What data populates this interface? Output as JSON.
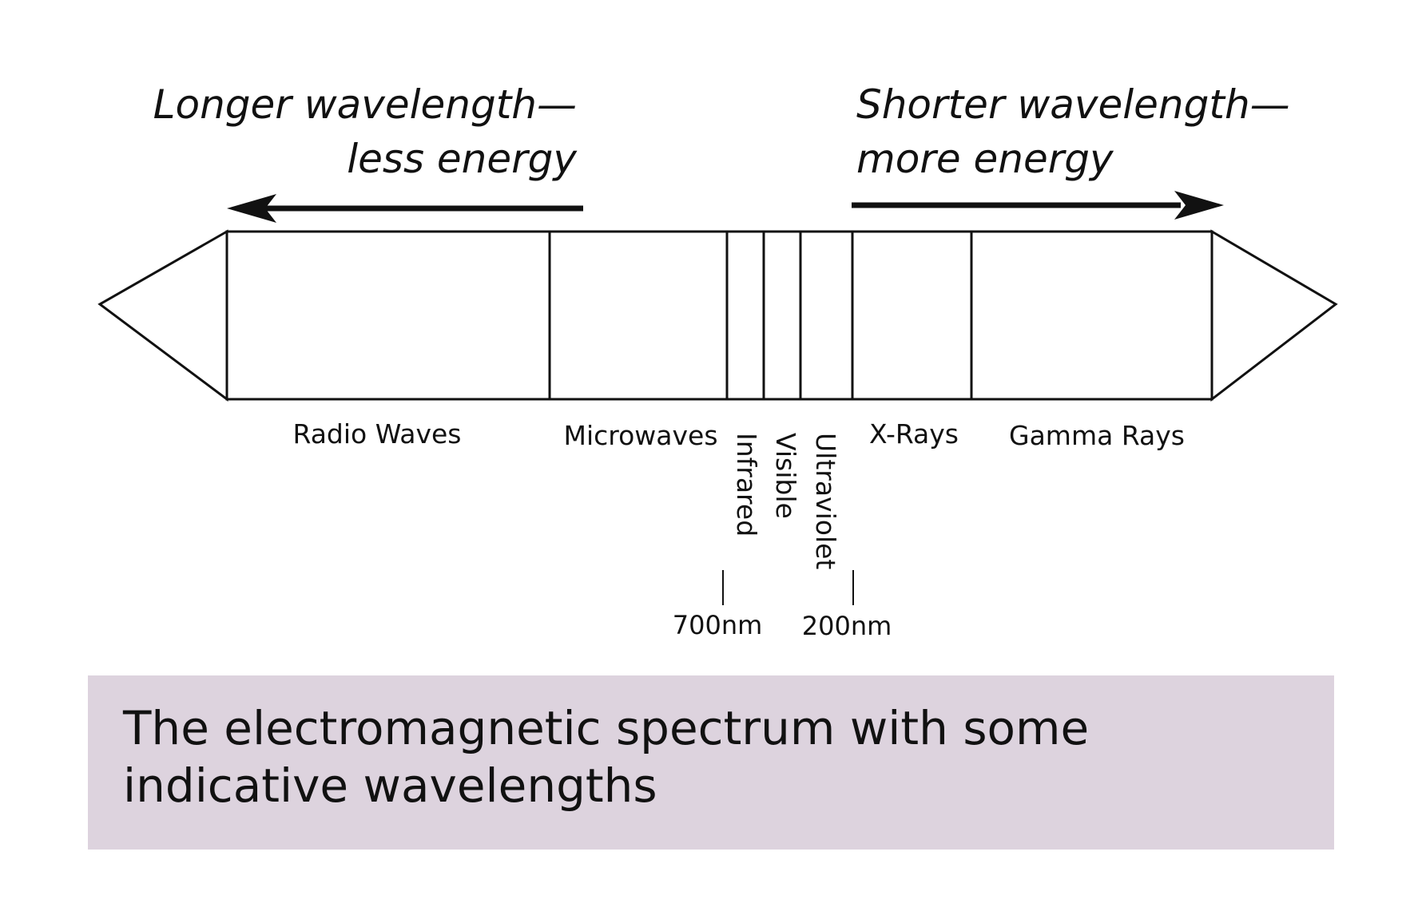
{
  "headings": {
    "left_line1": "Longer wavelength—",
    "left_line2": "less energy",
    "right_line1": "Shorter wavelength—",
    "right_line2": "more energy"
  },
  "bands": {
    "radio": "Radio Waves",
    "microwaves": "Microwaves",
    "infrared": "Infrared",
    "visible": "Visible",
    "ultraviolet": "Ultraviolet",
    "xrays": "X-Rays",
    "gamma": "Gamma Rays"
  },
  "markers": {
    "m700": "700nm",
    "m200": "200nm"
  },
  "caption": "The electromagnetic spectrum with some indicative wavelengths",
  "colors": {
    "caption_background": "#ddd3de",
    "line": "#111111"
  }
}
